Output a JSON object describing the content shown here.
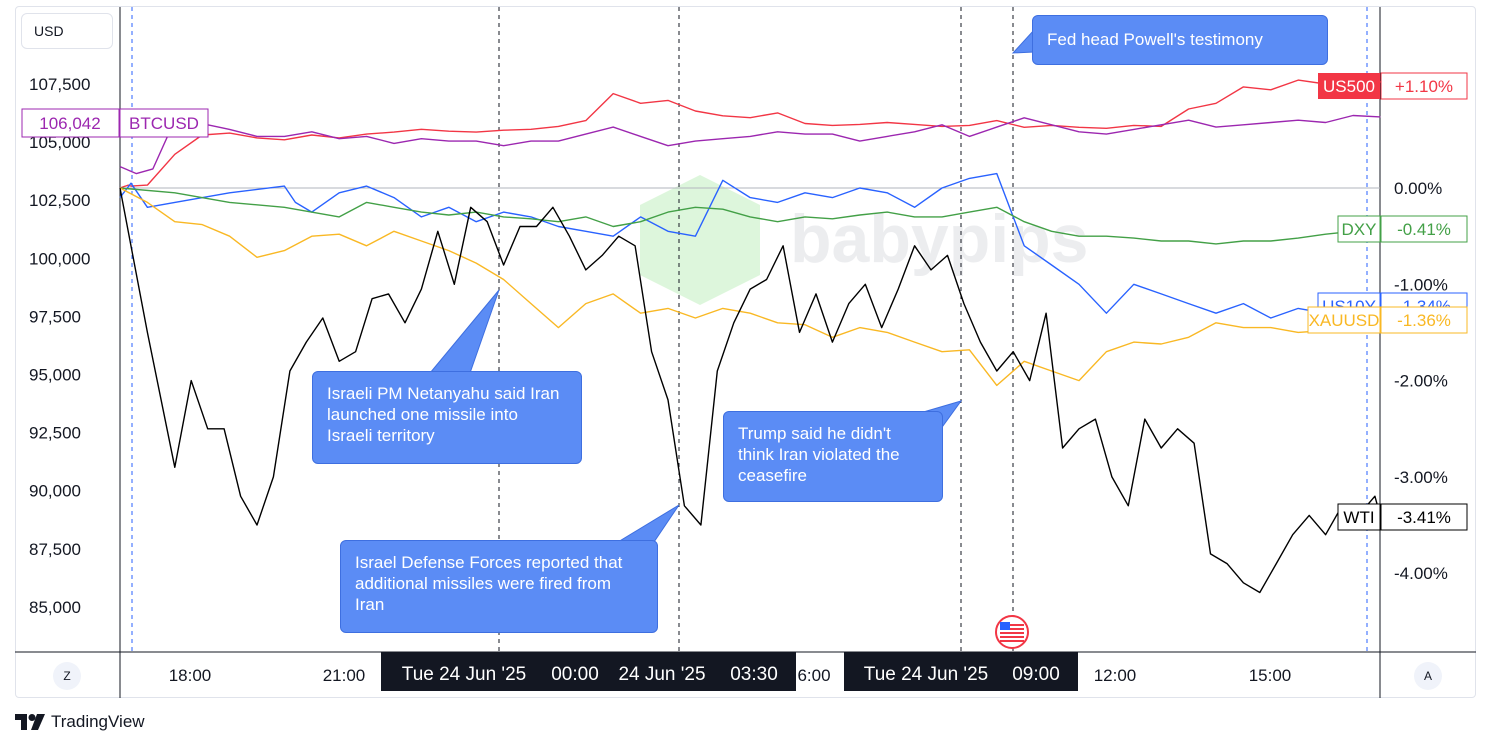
{
  "unit_label": "USD",
  "colors": {
    "US500": "#f23645",
    "BTCUSD": "#9c27b0",
    "US10Y": "#2962ff",
    "DXY": "#43a047",
    "XAUUSD": "#f9b824",
    "WTI": "#000000"
  },
  "chart_data": {
    "type": "line",
    "left_axis": {
      "label": "USD",
      "ticks": [
        "107,500",
        "105,000",
        "102,500",
        "100,000",
        "97,500",
        "95,000",
        "92,500",
        "90,000",
        "87,500",
        "85,000"
      ]
    },
    "right_axis": {
      "ticks": [
        "0.00%",
        "-1.00%",
        "-2.00%",
        "-3.00%",
        "-4.00%"
      ]
    },
    "x_ticks": [
      "18:00",
      "21:00",
      "00:00",
      "03:30",
      "06:00",
      "09:00",
      "12:00",
      "15:00"
    ],
    "x_highlight_labels": [
      "Tue 24 Jun '25",
      "00:00",
      "24 Jun '25",
      "03:30",
      "Tue 24 Jun '25",
      "09:00"
    ],
    "x_partial_label": "6:00",
    "series": [
      {
        "name": "US500",
        "value_label": "+1.10%",
        "unit": "percent",
        "x": [
          0,
          0.05,
          0.1,
          0.15,
          0.2,
          0.5,
          1,
          1.5,
          2,
          2.5,
          3,
          3.5,
          4,
          4.5,
          5,
          5.5,
          6,
          6.5,
          7,
          7.5,
          8,
          8.5,
          9,
          9.5,
          10,
          10.5,
          11,
          11.5,
          12,
          12.5,
          13,
          13.5,
          14,
          14.5,
          15,
          15.5,
          16,
          16.5,
          17,
          17.5,
          18,
          18.5,
          19,
          19.5,
          20,
          20.5,
          21,
          21.5,
          22,
          22.5,
          23
        ],
        "values": [
          0.0,
          0.01,
          0.02,
          0.03,
          0.02,
          0.03,
          0.35,
          0.55,
          0.57,
          0.52,
          0.5,
          0.55,
          0.52,
          0.56,
          0.58,
          0.61,
          0.59,
          0.58,
          0.6,
          0.61,
          0.64,
          0.7,
          0.98,
          0.88,
          0.91,
          0.8,
          0.75,
          0.73,
          0.78,
          0.67,
          0.65,
          0.66,
          0.68,
          0.66,
          0.64,
          0.65,
          0.7,
          0.63,
          0.65,
          0.63,
          0.62,
          0.65,
          0.64,
          0.82,
          0.88,
          1.05,
          1.02,
          1.12,
          1.08,
          1.15,
          1.1
        ]
      },
      {
        "name": "BTCUSD",
        "value_label": "106,042",
        "unit": "USD",
        "x": [
          0,
          0.3,
          0.6,
          1,
          1.3,
          1.6,
          2,
          2.5,
          3,
          3.5,
          4,
          4.5,
          5,
          5.5,
          6,
          6.5,
          7,
          7.5,
          8,
          8.5,
          9,
          9.5,
          10,
          10.5,
          11,
          11.5,
          12,
          12.5,
          13,
          13.5,
          14,
          14.5,
          15,
          15.5,
          16,
          16.5,
          17,
          17.5,
          18,
          18.5,
          19,
          19.5,
          20,
          20.5,
          21,
          21.5,
          22,
          22.5,
          23
        ],
        "values": [
          103900,
          103600,
          103800,
          105900,
          105300,
          105700,
          105500,
          105200,
          105200,
          105400,
          105100,
          105200,
          104900,
          105100,
          105000,
          105000,
          104800,
          105000,
          105000,
          105300,
          105600,
          105200,
          104800,
          105000,
          105100,
          105200,
          105400,
          105300,
          105300,
          105000,
          105200,
          105400,
          105700,
          105200,
          105600,
          106000,
          105700,
          105400,
          105300,
          105500,
          105700,
          105900,
          105600,
          105700,
          105800,
          105900,
          105800,
          106100,
          106042
        ]
      },
      {
        "name": "US10Y",
        "value_label": "-1.34%",
        "unit": "percent",
        "x": [
          0,
          0.2,
          0.5,
          1,
          2,
          3,
          3.2,
          3.5,
          4,
          4.5,
          5,
          5.5,
          6,
          6.5,
          7,
          7.5,
          8,
          8.5,
          9,
          9.5,
          10,
          10.5,
          11,
          11.5,
          12,
          12.5,
          13,
          13.5,
          14,
          14.5,
          15,
          15.5,
          16,
          16.5,
          17,
          17.5,
          18,
          18.5,
          19,
          19.5,
          20,
          20.5,
          21,
          21.5,
          22,
          22.5,
          23
        ],
        "values": [
          -0.1,
          0.05,
          -0.2,
          -0.15,
          -0.05,
          0.02,
          -0.15,
          -0.25,
          -0.05,
          0.02,
          -0.1,
          -0.3,
          -0.2,
          -0.35,
          -0.25,
          -0.3,
          -0.4,
          -0.45,
          -0.5,
          -0.3,
          -0.45,
          -0.5,
          0.08,
          -0.1,
          -0.15,
          -0.05,
          -0.1,
          0.0,
          -0.05,
          -0.2,
          0.0,
          0.1,
          0.15,
          -0.6,
          -0.8,
          -1.0,
          -1.3,
          -1.0,
          -1.1,
          -1.2,
          -1.3,
          -1.2,
          -1.35,
          -1.25,
          -1.3,
          -1.4,
          -1.34
        ]
      },
      {
        "name": "DXY",
        "value_label": "-0.41%",
        "unit": "percent",
        "x": [
          0,
          1,
          2,
          3,
          4,
          4.5,
          5,
          5.5,
          6,
          6.5,
          7,
          7.5,
          8,
          8.5,
          9,
          9.5,
          10,
          10.5,
          11,
          11.5,
          12,
          12.5,
          13,
          13.5,
          14,
          14.5,
          15,
          15.5,
          16,
          16.5,
          17,
          17.5,
          18,
          18.5,
          19,
          19.5,
          20,
          20.5,
          21,
          21.5,
          22,
          22.5,
          23
        ],
        "values": [
          0.0,
          -0.05,
          -0.15,
          -0.2,
          -0.3,
          -0.15,
          -0.2,
          -0.25,
          -0.28,
          -0.25,
          -0.3,
          -0.32,
          -0.35,
          -0.3,
          -0.4,
          -0.35,
          -0.25,
          -0.2,
          -0.22,
          -0.3,
          -0.35,
          -0.3,
          -0.32,
          -0.28,
          -0.25,
          -0.3,
          -0.3,
          -0.25,
          -0.2,
          -0.35,
          -0.45,
          -0.5,
          -0.5,
          -0.52,
          -0.55,
          -0.55,
          -0.58,
          -0.55,
          -0.55,
          -0.52,
          -0.48,
          -0.45,
          -0.41
        ]
      },
      {
        "name": "XAUUSD",
        "value_label": "-1.36%",
        "unit": "percent",
        "x": [
          0,
          0.5,
          1,
          1.5,
          2,
          2.5,
          3,
          3.5,
          4,
          4.5,
          5,
          5.5,
          6,
          6.5,
          7,
          7.5,
          8,
          8.5,
          9,
          9.5,
          10,
          10.5,
          11,
          11.5,
          12,
          12.5,
          13,
          13.5,
          14,
          14.5,
          15,
          15.5,
          16,
          16.5,
          17,
          17.5,
          18,
          18.5,
          19,
          19.5,
          20,
          20.5,
          21,
          21.5,
          22,
          22.5,
          23
        ],
        "values": [
          0.0,
          -0.15,
          -0.35,
          -0.38,
          -0.5,
          -0.72,
          -0.65,
          -0.5,
          -0.48,
          -0.6,
          -0.45,
          -0.55,
          -0.65,
          -0.78,
          -0.95,
          -1.2,
          -1.45,
          -1.2,
          -1.1,
          -1.3,
          -1.25,
          -1.35,
          -1.25,
          -1.3,
          -1.4,
          -1.42,
          -1.55,
          -1.45,
          -1.5,
          -1.6,
          -1.7,
          -1.68,
          -2.05,
          -1.8,
          -1.9,
          -2.0,
          -1.7,
          -1.6,
          -1.62,
          -1.55,
          -1.4,
          -1.45,
          -1.45,
          -1.5,
          -1.48,
          -1.42,
          -1.36
        ]
      },
      {
        "name": "WTI",
        "value_label": "-3.41%",
        "unit": "percent",
        "x": [
          0,
          0.5,
          1,
          1.3,
          1.6,
          1.9,
          2.2,
          2.5,
          2.8,
          3.1,
          3.4,
          3.7,
          4.0,
          4.3,
          4.6,
          4.9,
          5.2,
          5.5,
          5.8,
          6.1,
          6.4,
          6.7,
          7.0,
          7.3,
          7.6,
          7.9,
          8.2,
          8.5,
          8.8,
          9.1,
          9.4,
          9.7,
          10.0,
          10.3,
          10.6,
          10.9,
          11.2,
          11.5,
          11.8,
          12.1,
          12.4,
          12.7,
          13.0,
          13.3,
          13.6,
          13.9,
          14.2,
          14.5,
          14.8,
          15.1,
          15.4,
          15.7,
          16.0,
          16.3,
          16.6,
          16.9,
          17.2,
          17.5,
          17.8,
          18.1,
          18.4,
          18.7,
          19.0,
          19.3,
          19.6,
          19.9,
          20.2,
          20.5,
          20.8,
          21.1,
          21.4,
          21.7,
          22.0,
          22.3,
          22.6,
          22.9,
          23
        ],
        "values": [
          0.0,
          -1.5,
          -2.9,
          -2.0,
          -2.5,
          -2.5,
          -3.2,
          -3.5,
          -3.0,
          -1.9,
          -1.6,
          -1.35,
          -1.8,
          -1.7,
          -1.15,
          -1.1,
          -1.4,
          -1.05,
          -0.45,
          -1.0,
          -0.2,
          -0.35,
          -0.8,
          -0.4,
          -0.4,
          -0.2,
          -0.5,
          -0.85,
          -0.7,
          -0.5,
          -0.6,
          -1.7,
          -2.2,
          -3.3,
          -3.5,
          -1.9,
          -1.4,
          -1.05,
          -0.95,
          -0.6,
          -1.5,
          -1.1,
          -1.6,
          -1.2,
          -1.0,
          -1.45,
          -1.05,
          -0.6,
          -0.85,
          -0.7,
          -1.2,
          -1.6,
          -1.9,
          -1.7,
          -2.0,
          -1.3,
          -2.7,
          -2.5,
          -2.4,
          -3.0,
          -3.3,
          -2.4,
          -2.7,
          -2.5,
          -2.65,
          -3.8,
          -3.9,
          -4.1,
          -4.2,
          -3.9,
          -3.6,
          -3.4,
          -3.6,
          -3.3,
          -3.4,
          -3.2,
          -3.41
        ]
      }
    ],
    "annotations": [
      {
        "text": "Fed head Powell's testimony"
      },
      {
        "text": "Israeli PM Netanyahu said Iran launched one missile into Israeli territory"
      },
      {
        "text": "Israel Defense Forces reported that additional missiles were fired from Iran"
      },
      {
        "text": "Trump said he didn't think Iran violated the ceasefire"
      }
    ],
    "watermark": "babypips"
  },
  "footer": {
    "brand": "TradingView"
  },
  "controls": {
    "left": "Z",
    "right": "A"
  }
}
